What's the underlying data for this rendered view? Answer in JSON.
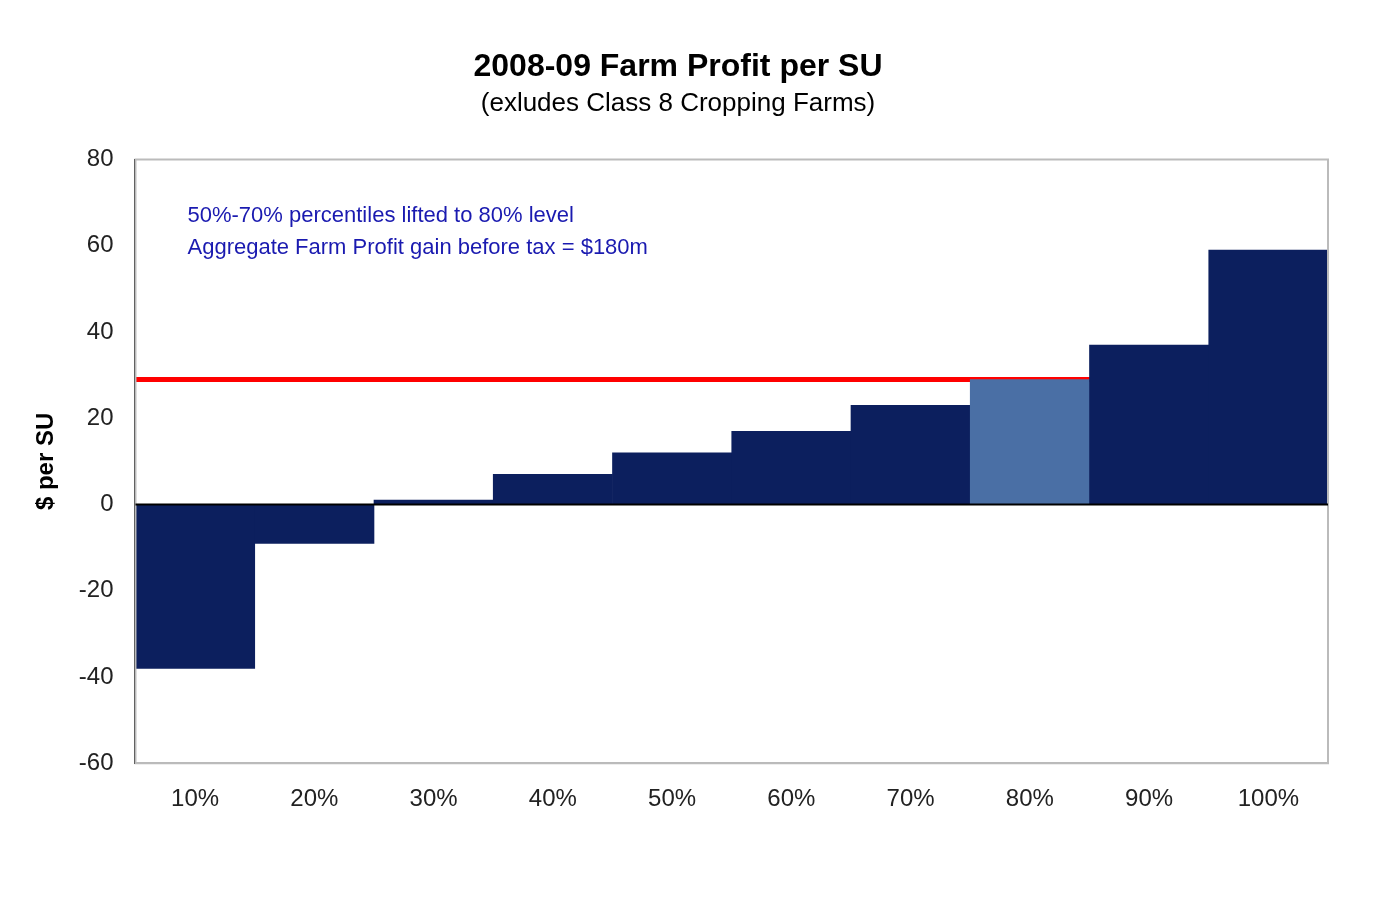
{
  "chart_data": {
    "type": "bar",
    "title": "2008-09 Farm Profit per SU",
    "subtitle": "(exludes Class 8 Cropping Farms)",
    "ylabel": "$ per SU",
    "categories": [
      "10%",
      "20%",
      "30%",
      "40%",
      "50%",
      "60%",
      "70%",
      "80%",
      "90%",
      "100%"
    ],
    "values": [
      -38,
      -9,
      1,
      7,
      12,
      17,
      23,
      29,
      37,
      59
    ],
    "colors": [
      "#0c1f5e",
      "#0c1f5e",
      "#0c1f5e",
      "#0c1f5e",
      "#0c1f5e",
      "#0c1f5e",
      "#0c1f5e",
      "#4a6fa5",
      "#0c1f5e",
      "#0c1f5e"
    ],
    "ylim": [
      -60,
      80
    ],
    "yticks": [
      -60,
      -40,
      -20,
      0,
      20,
      40,
      60,
      80
    ],
    "legend": false,
    "ref_lines": [
      {
        "axis": "y",
        "value": 29,
        "color": "#ff0000"
      }
    ],
    "annotations": [
      "50%-70% percentiles lifted to 80% level",
      "Aggregate Farm Profit gain before tax = $180m"
    ]
  }
}
